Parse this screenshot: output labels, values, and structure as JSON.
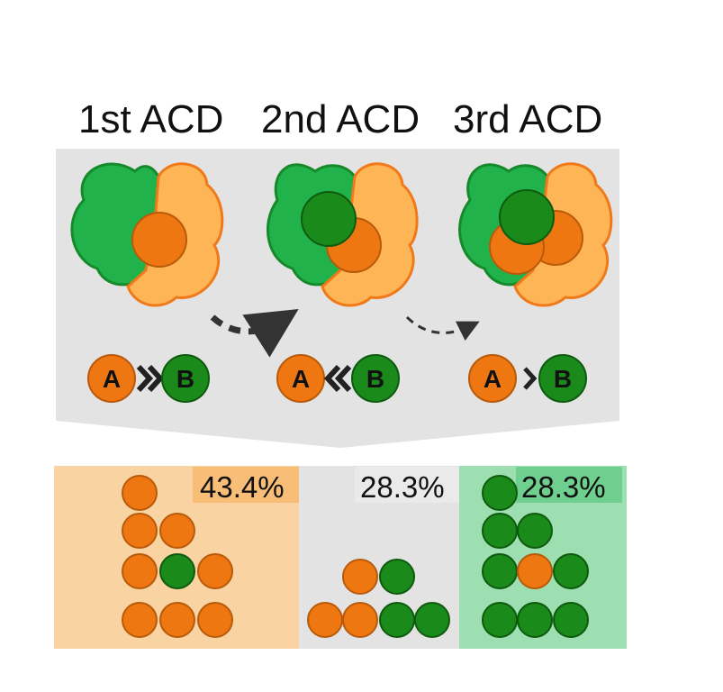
{
  "stages": [
    {
      "title": "1st ACD",
      "left": "A",
      "right": "B",
      "relation": "A >> B"
    },
    {
      "title": "2nd ACD",
      "left": "A",
      "right": "B",
      "relation": "A << B"
    },
    {
      "title": "3rd ACD",
      "left": "A",
      "right": "B",
      "relation": "A > B"
    }
  ],
  "outcomes": [
    {
      "percent": "43.4%",
      "circles": [
        "orange",
        "orange",
        "orange",
        "orange",
        "green",
        "orange",
        "orange",
        "orange",
        "orange"
      ]
    },
    {
      "percent": "28.3%",
      "circles": [
        "orange",
        "green",
        "orange",
        "orange",
        "green",
        "green"
      ]
    },
    {
      "percent": "28.3%",
      "circles": [
        "green",
        "green",
        "green",
        "green",
        "orange",
        "green",
        "green",
        "green",
        "green"
      ]
    }
  ],
  "colors": {
    "orange": "#EE7711",
    "orange_light": "#FDB556",
    "green": "#1A8A1A",
    "green_light": "#22B24C",
    "panel_gray": "#E3E3E3",
    "panel_orange": "#FAD3A3",
    "panel_green": "#9DDFB0"
  }
}
